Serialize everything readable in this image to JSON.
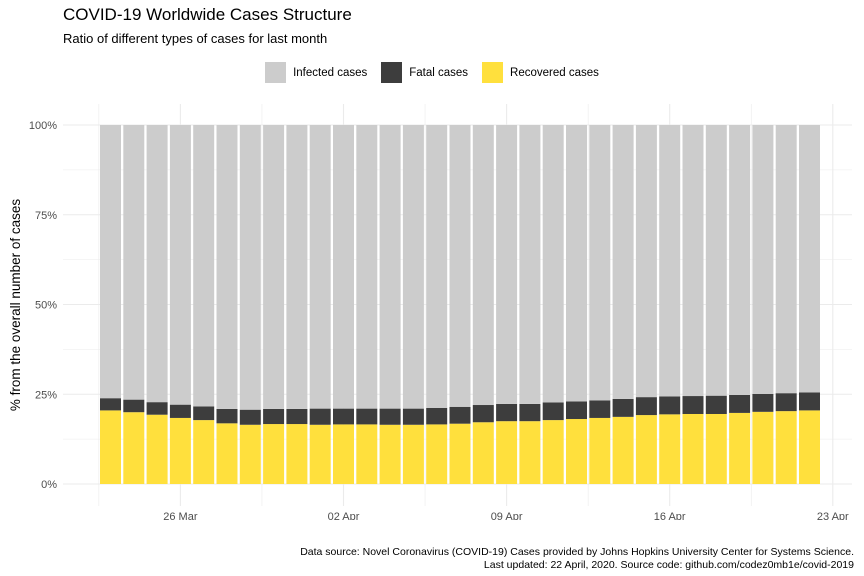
{
  "title": "COVID-19 Worldwide Cases Structure",
  "subtitle": "Ratio of different types of cases for last month",
  "caption_lines": [
    "Data source: Novel Coronavirus (COVID-19) Cases provided by Johns Hopkins University Center for Systems Science.",
    "Last updated: 22 April, 2020. Source code: github.com/codez0mb1e/covid-2019"
  ],
  "colors": {
    "infected": "#cccccc",
    "fatal": "#3d3d3d",
    "recovered": "#ffe03d",
    "grid": "#ebebeb"
  },
  "chart_data": {
    "type": "bar",
    "stacked": true,
    "title": "COVID-19 Worldwide Cases Structure",
    "subtitle": "Ratio of different types of cases for last month",
    "xlabel": "",
    "ylabel": "% from the overall number of cases",
    "x_ticks": [
      "26 Mar",
      "02 Apr",
      "09 Apr",
      "16 Apr",
      "23 Apr"
    ],
    "y_ticks": [
      "0%",
      "25%",
      "50%",
      "75%",
      "100%"
    ],
    "ylim": [
      0,
      100
    ],
    "legend_position": "top",
    "dates": [
      "2020-03-23",
      "2020-03-24",
      "2020-03-25",
      "2020-03-26",
      "2020-03-27",
      "2020-03-28",
      "2020-03-29",
      "2020-03-30",
      "2020-03-31",
      "2020-04-01",
      "2020-04-02",
      "2020-04-03",
      "2020-04-04",
      "2020-04-05",
      "2020-04-06",
      "2020-04-07",
      "2020-04-08",
      "2020-04-09",
      "2020-04-10",
      "2020-04-11",
      "2020-04-12",
      "2020-04-13",
      "2020-04-14",
      "2020-04-15",
      "2020-04-16",
      "2020-04-17",
      "2020-04-18",
      "2020-04-19",
      "2020-04-20",
      "2020-04-21",
      "2020-04-22"
    ],
    "series": [
      {
        "name": "Recovered cases",
        "values": [
          20.5,
          20.0,
          19.3,
          18.4,
          17.8,
          16.9,
          16.5,
          16.7,
          16.7,
          16.5,
          16.6,
          16.6,
          16.5,
          16.5,
          16.6,
          16.8,
          17.2,
          17.5,
          17.5,
          17.8,
          18.1,
          18.4,
          18.7,
          19.2,
          19.4,
          19.5,
          19.5,
          19.8,
          20.1,
          20.3,
          20.5
        ]
      },
      {
        "name": "Fatal cases",
        "values": [
          3.4,
          3.5,
          3.5,
          3.7,
          3.8,
          4.0,
          4.2,
          4.2,
          4.2,
          4.5,
          4.4,
          4.4,
          4.5,
          4.5,
          4.6,
          4.7,
          4.8,
          4.8,
          4.8,
          4.9,
          4.9,
          4.9,
          5.0,
          5.0,
          5.0,
          5.0,
          5.1,
          5.0,
          5.0,
          5.0,
          5.0
        ]
      },
      {
        "name": "Infected cases",
        "values": [
          76.1,
          76.5,
          77.2,
          77.9,
          78.4,
          79.1,
          79.3,
          79.1,
          79.1,
          79.0,
          79.0,
          79.0,
          79.0,
          79.0,
          78.8,
          78.5,
          78.0,
          77.7,
          77.7,
          77.3,
          77.0,
          76.7,
          76.3,
          75.8,
          75.6,
          75.5,
          75.4,
          75.2,
          74.9,
          74.7,
          74.5
        ]
      }
    ]
  },
  "legend": [
    {
      "label": "Infected cases",
      "color": "#cccccc"
    },
    {
      "label": "Fatal cases",
      "color": "#3d3d3d"
    },
    {
      "label": "Recovered cases",
      "color": "#ffe03d"
    }
  ]
}
